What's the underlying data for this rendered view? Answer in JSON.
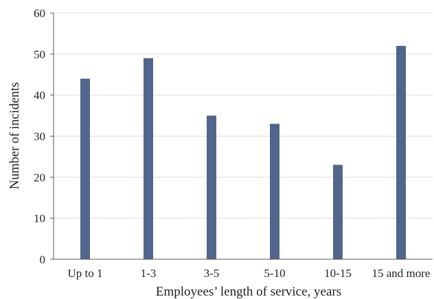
{
  "chart_data": {
    "type": "bar",
    "title": "",
    "xlabel": "Employees’ length of service, years",
    "ylabel": "Number of incidents",
    "categories": [
      "Up to 1",
      "1-3",
      "3-5",
      "5-10",
      "10-15",
      "15 and more"
    ],
    "values": [
      44,
      49,
      35,
      33,
      23,
      52
    ],
    "ylim": [
      0,
      60
    ],
    "yticks": [
      0,
      10,
      20,
      30,
      40,
      50,
      60
    ],
    "grid": true,
    "legend": "none",
    "bar_color": "#51668c",
    "grid_color": "#dcdcdc",
    "axis_color": "#555555"
  }
}
